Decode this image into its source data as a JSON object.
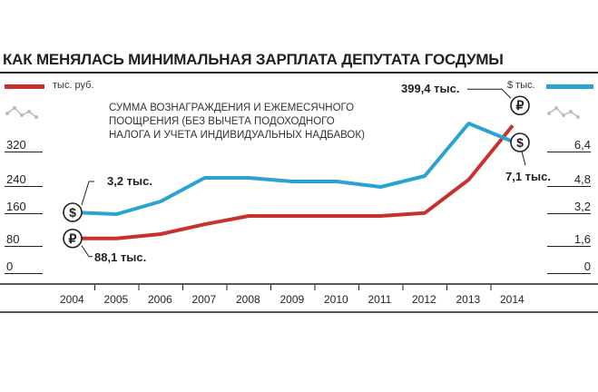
{
  "title": "КАК МЕНЯЛАСЬ МИНИМАЛЬНАЯ ЗАРПЛАТА ДЕПУТАТА ГОСДУМЫ",
  "note": "СУММА ВОЗНАГРАЖДЕНИЯ И ЕЖЕМЕСЯЧНОГО ПООЩРЕНИЯ (БЕЗ ВЫЧЕТА ПОДОХОДНОГО НАЛОГА И УЧЕТА ИНДИВИДУАЛЬНЫХ НАДБАВОК)",
  "legend": {
    "left_unit": "тыс. руб.",
    "right_unit": "$ тыс."
  },
  "colors": {
    "rub": "#c8322d",
    "usd": "#2aa3d2",
    "ink": "#231f20"
  },
  "chart_data": {
    "type": "line",
    "categories": [
      "2004",
      "2005",
      "2006",
      "2007",
      "2008",
      "2009",
      "2010",
      "2011",
      "2012",
      "2013",
      "2014"
    ],
    "y_left": {
      "unit": "тыс. руб.",
      "ticks": [
        "320",
        "240",
        "160",
        "80",
        "0"
      ],
      "range": [
        0,
        400
      ]
    },
    "y_right": {
      "unit": "$ тыс.",
      "ticks": [
        "6,4",
        "4,8",
        "3,2",
        "1,6",
        "0"
      ],
      "range": [
        0,
        8
      ]
    },
    "series": [
      {
        "name": "тыс. руб.",
        "axis": "left",
        "values": [
          88.1,
          88.1,
          100,
          127,
          150,
          150,
          150,
          150,
          158,
          250,
          399.4
        ]
      },
      {
        "name": "$ тыс.",
        "axis": "right",
        "values": [
          3.2,
          3.1,
          3.8,
          5.1,
          5.1,
          4.9,
          4.9,
          4.6,
          5.2,
          8.1,
          7.1
        ]
      }
    ],
    "annotations": {
      "rub_start": "88,1 тыс.",
      "rub_end": "399,4 тыс.",
      "usd_start": "3,2 тыс.",
      "usd_end": "7,1 тыс."
    },
    "markers": {
      "rub": "₽",
      "usd": "$"
    }
  }
}
